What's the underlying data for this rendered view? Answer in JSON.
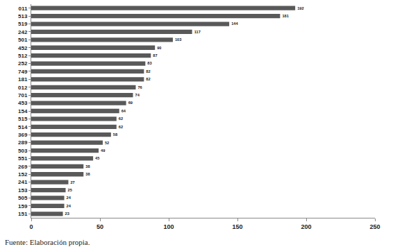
{
  "chart_data": {
    "type": "bar",
    "orientation": "horizontal",
    "categories": [
      "011",
      "513",
      "519",
      "242",
      "501",
      "452",
      "512",
      "252",
      "749",
      "181",
      "012",
      "701",
      "453",
      "154",
      "515",
      "514",
      "369",
      "289",
      "503",
      "551",
      "269",
      "152",
      "241",
      "153",
      "505",
      "159",
      "151"
    ],
    "values": [
      192,
      181,
      144,
      117,
      103,
      90,
      87,
      83,
      82,
      82,
      76,
      74,
      69,
      64,
      62,
      62,
      58,
      52,
      49,
      45,
      38,
      38,
      27,
      25,
      24,
      24,
      23
    ],
    "color": "#595959",
    "xlim": [
      0,
      250
    ],
    "xticks": [
      0,
      50,
      100,
      150,
      200,
      250
    ],
    "grid": false,
    "data_labels": true,
    "annotations": [
      "Fuente: Elaboración propia."
    ]
  }
}
